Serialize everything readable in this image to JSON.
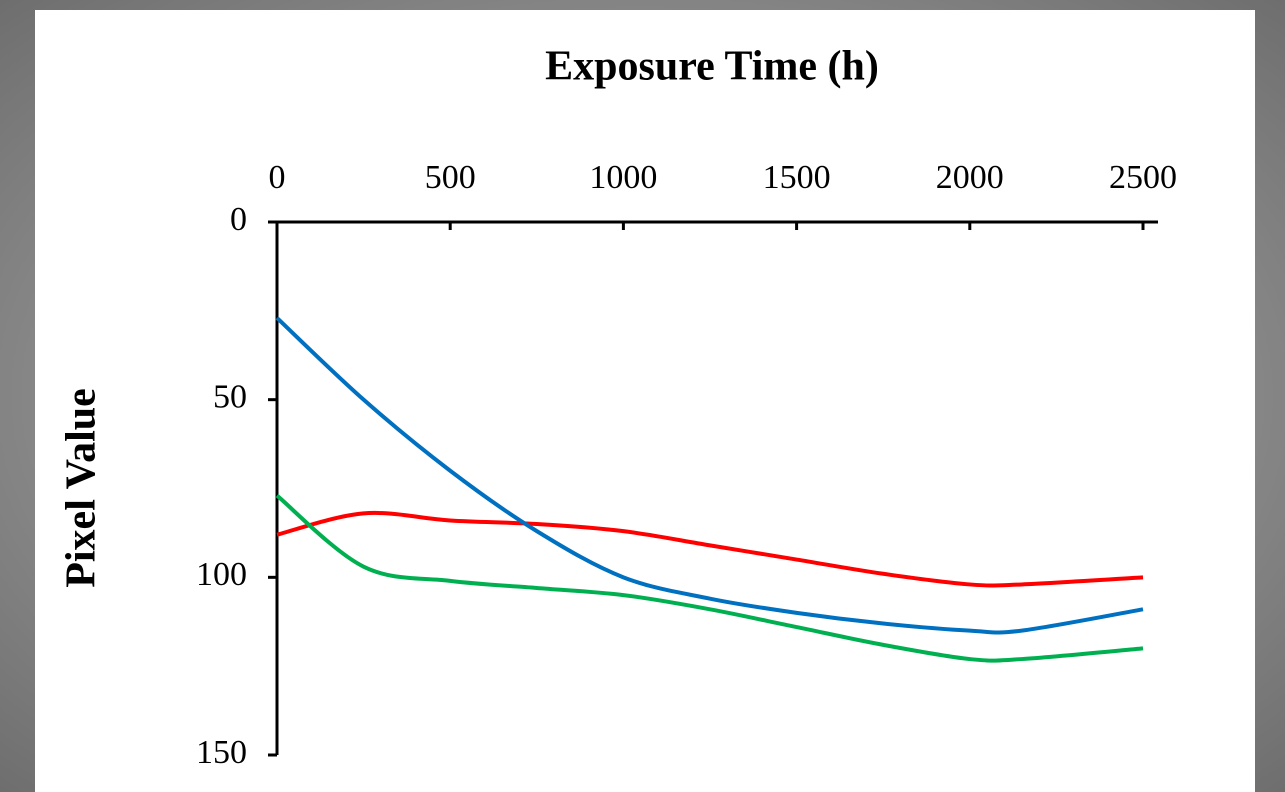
{
  "chart_data": {
    "type": "line",
    "xlabel": "Exposure Time (h)",
    "ylabel": "Pixel Value",
    "x": [
      0,
      250,
      500,
      750,
      1000,
      1250,
      1500,
      1750,
      2000,
      2150,
      2500
    ],
    "series": [
      {
        "color": "#ff0000",
        "values": [
          88,
          82,
          84,
          85,
          87,
          91,
          95,
          99,
          102,
          102,
          100
        ]
      },
      {
        "color": "#00b050",
        "values": [
          77,
          97,
          101,
          103,
          105,
          109,
          114,
          119,
          123,
          123,
          120
        ]
      },
      {
        "color": "#0070c0",
        "values": [
          27,
          50,
          70,
          87,
          100,
          106,
          110,
          113,
          115,
          115,
          109
        ]
      }
    ],
    "xlim": [
      0,
      2500
    ],
    "ylim": [
      0,
      150
    ],
    "xticks": [
      0,
      500,
      1000,
      1500,
      2000,
      2500
    ],
    "yticks": [
      0,
      50,
      100,
      150
    ],
    "y_inverted": true,
    "x_axis_position": "top"
  }
}
